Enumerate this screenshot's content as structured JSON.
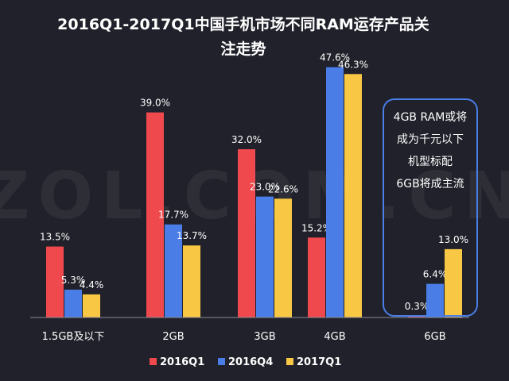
{
  "chart_data": {
    "type": "bar",
    "title": "2016Q1-2017Q1中国手机市场不同RAM运存产品关注走势",
    "title_lines": [
      "2016Q1-2017Q1中国手机市场不同RAM运存产品关",
      "注走势"
    ],
    "categories": [
      "1.5GB及以下",
      "2GB",
      "3GB",
      "4GB",
      "6GB"
    ],
    "series": [
      {
        "name": "2016Q1",
        "color": "#f0494d",
        "values": [
          13.5,
          39.0,
          32.0,
          15.2,
          0.3
        ]
      },
      {
        "name": "2016Q4",
        "color": "#4a7de6",
        "values": [
          5.3,
          17.7,
          23.0,
          47.6,
          6.4
        ]
      },
      {
        "name": "2017Q1",
        "color": "#f8c744",
        "values": [
          4.4,
          13.7,
          22.6,
          46.3,
          13.0
        ]
      }
    ],
    "value_suffix": "%",
    "ylim": [
      0,
      48
    ],
    "grid": false,
    "legend_position": "bottom",
    "annotation": {
      "lines": [
        "4GB RAM或将",
        "成为千元以下",
        "机型标配",
        "6GB将成主流"
      ],
      "border_color": "#4a7de6"
    },
    "watermark": "ZOL.COM.CN"
  }
}
